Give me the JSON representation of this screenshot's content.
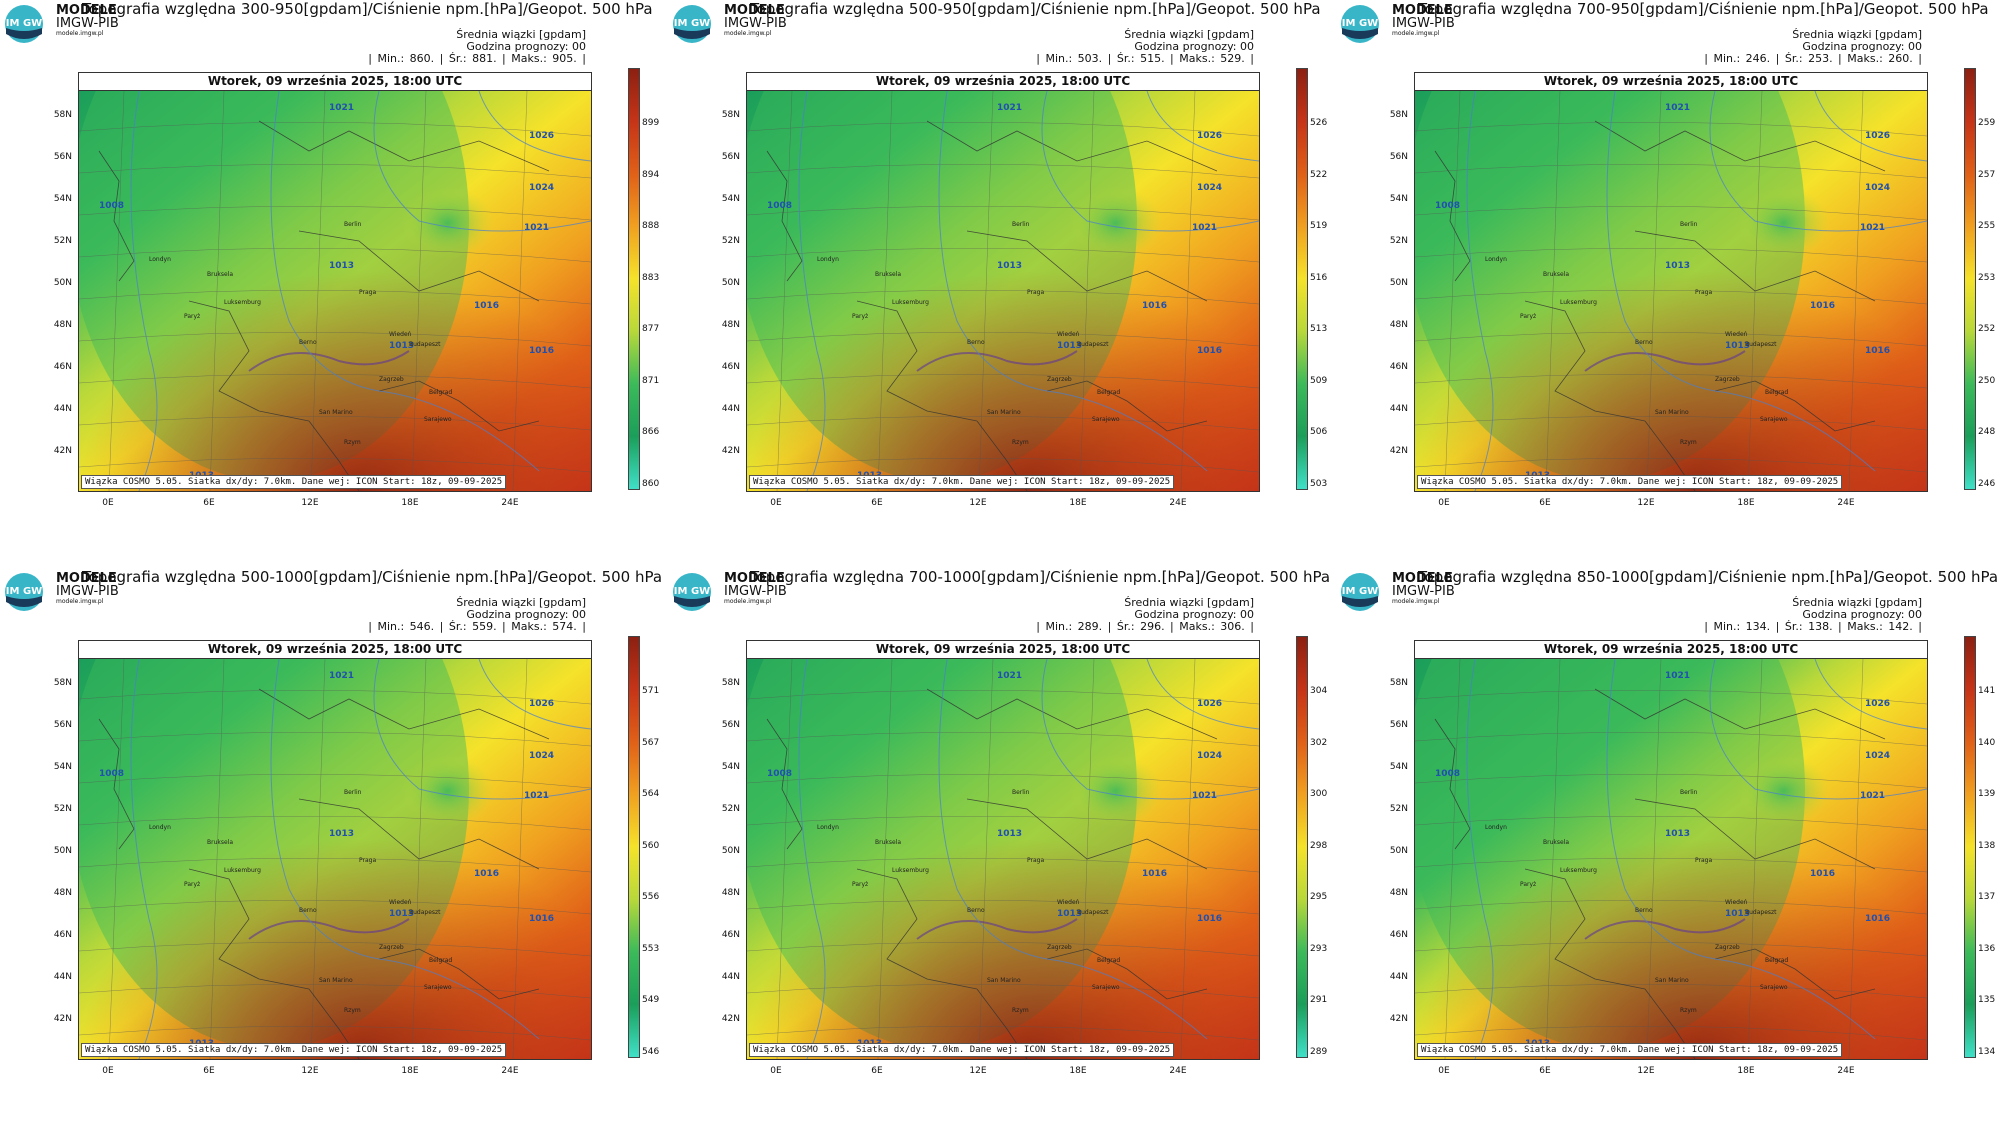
{
  "common": {
    "logo_line1": "MODELE",
    "logo_line2": "IMGW-PIB",
    "logo_line3": "modele.imgw.pl",
    "logo_mark": "IM GW",
    "avg_label": "Średnia wiązki [gpdam]",
    "hour_label": "Godzina prognozy: 00",
    "datetime": "Wtorek, 09 września 2025, 18:00 UTC",
    "footer": "Wiązka COSMO 5.05. Siatka dx/dy: 7.0km. Dane wej: ICON Start: 18z, 09-09-2025",
    "lat_ticks": [
      "58N",
      "56N",
      "54N",
      "52N",
      "50N",
      "48N",
      "46N",
      "44N",
      "42N"
    ],
    "lon_ticks": [
      "0E",
      "6E",
      "12E",
      "18E",
      "24E"
    ],
    "isobar_labels": [
      "1021",
      "1026",
      "1024",
      "1021",
      "1016",
      "1013",
      "1008",
      "1016",
      "1013",
      "1013"
    ],
    "city_labels": [
      "Londyn",
      "Paryż",
      "Bruksela",
      "Luksemburg",
      "Berlin",
      "Praga",
      "Wiedeń",
      "Budapeszt",
      "Berno",
      "Zagrzeb",
      "Belgrad",
      "Rzym",
      "San Marino",
      "Sarajewo"
    ],
    "colors": {
      "green_dark": "#1b9e5a",
      "green": "#3cba5a",
      "yellow_green": "#b8d83a",
      "yellow": "#f5e22a",
      "orange": "#f0a020",
      "red_orange": "#e06018",
      "red": "#c63418",
      "dark_red": "#8c2012"
    }
  },
  "panels": [
    {
      "title": "Topografia względna 300-950[gpdam]/Ciśnienie npm.[hPa]/Geopot. 500 hPa",
      "stats": "| Min.:    860. | Śr.:    881. | Maks.:    905. |",
      "scale": [
        "899",
        "894",
        "888",
        "883",
        "877",
        "871",
        "866",
        "860"
      ]
    },
    {
      "title": "Topografia względna 500-950[gpdam]/Ciśnienie npm.[hPa]/Geopot. 500 hPa",
      "stats": "| Min.:    503. | Śr.:    515. | Maks.:    529. |",
      "scale": [
        "526",
        "522",
        "519",
        "516",
        "513",
        "509",
        "506",
        "503"
      ]
    },
    {
      "title": "Topografia względna 700-950[gpdam]/Ciśnienie npm.[hPa]/Geopot. 500 hPa",
      "stats": "| Min.:    246. | Śr.:    253. | Maks.:    260. |",
      "scale": [
        "259",
        "257",
        "255",
        "253",
        "252",
        "250",
        "248",
        "246"
      ]
    },
    {
      "title": "Topografia względna 500-1000[gpdam]/Ciśnienie npm.[hPa]/Geopot. 500 hPa",
      "stats": "| Min.:    546. | Śr.:    559. | Maks.:    574. |",
      "scale": [
        "571",
        "567",
        "564",
        "560",
        "556",
        "553",
        "549",
        "546"
      ]
    },
    {
      "title": "Topografia względna 700-1000[gpdam]/Ciśnienie npm.[hPa]/Geopot. 500 hPa",
      "stats": "| Min.:    289. | Śr.:    296. | Maks.:    306. |",
      "scale": [
        "304",
        "302",
        "300",
        "298",
        "295",
        "293",
        "291",
        "289"
      ]
    },
    {
      "title": "Topografia względna 850-1000[gpdam]/Ciśnienie npm.[hPa]/Geopot. 500 hPa",
      "stats": "| Min.:    134. | Śr.:    138. | Maks.:    142. |",
      "scale": [
        "141",
        "140",
        "139",
        "138",
        "137",
        "136",
        "135",
        "134"
      ]
    }
  ]
}
